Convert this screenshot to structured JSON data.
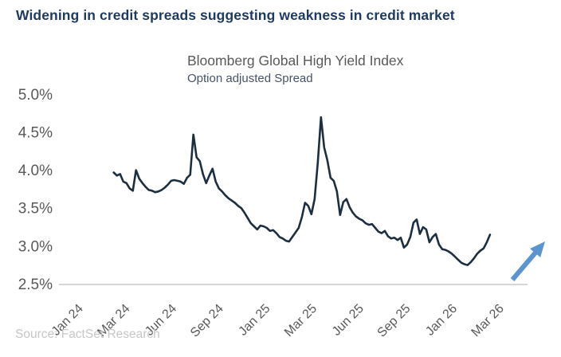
{
  "header": {
    "title": "Widening in credit spreads suggesting weakness in credit market"
  },
  "chart": {
    "title": "Bloomberg Global High Yield Index",
    "subtitle": "Option adjusted Spread",
    "source": "Source: FactSet Research"
  },
  "colors": {
    "header_title": "#1F3A5F",
    "chart_title": "#595959",
    "chart_subtitle": "#44546A",
    "axis_labels": "#595959",
    "axis_line": "#C8C8C8",
    "series_line": "#1C2F40",
    "trend_arrow": "#5B94CE",
    "source_text": "#C6C6C6"
  },
  "chart_data": {
    "type": "line",
    "title": "Bloomberg Global High Yield Index",
    "subtitle": "Option adjusted Spread",
    "unit": "percent",
    "ylim": [
      2.5,
      5.0
    ],
    "ytick_values": [
      5.0,
      4.5,
      4.0,
      3.5,
      3.0,
      2.5
    ],
    "ytick_labels": [
      "5.0%",
      "4.5%",
      "4.0%",
      "3.5%",
      "3.0%",
      "2.5%"
    ],
    "xtick_labels": [
      "Jan 24",
      "Mar 24",
      "Jun 24",
      "Sep 24",
      "Jan 25",
      "Mar 25",
      "Jun 25",
      "Sep 25",
      "Jan 26",
      "Mar 26"
    ],
    "grid": false,
    "legend": false,
    "annotations": [
      {
        "type": "arrow",
        "direction": "up-right",
        "meaning": "spreads widening"
      }
    ],
    "series": [
      {
        "name": "Option adjusted Spread",
        "start_near_tick": "Mar 24",
        "end_near_tick": "Mar 26",
        "values": [
          3.97,
          3.93,
          3.95,
          3.85,
          3.83,
          3.76,
          3.73,
          4.0,
          3.89,
          3.83,
          3.78,
          3.74,
          3.73,
          3.71,
          3.72,
          3.74,
          3.77,
          3.81,
          3.86,
          3.87,
          3.86,
          3.85,
          3.82,
          3.9,
          3.94,
          4.47,
          4.17,
          4.12,
          3.95,
          3.83,
          3.93,
          4.02,
          3.85,
          3.76,
          3.72,
          3.67,
          3.63,
          3.6,
          3.57,
          3.53,
          3.5,
          3.44,
          3.37,
          3.3,
          3.26,
          3.22,
          3.27,
          3.26,
          3.24,
          3.2,
          3.21,
          3.17,
          3.12,
          3.1,
          3.07,
          3.06,
          3.12,
          3.18,
          3.24,
          3.38,
          3.57,
          3.53,
          3.42,
          3.62,
          4.1,
          4.7,
          4.3,
          4.13,
          3.9,
          3.86,
          3.72,
          3.41,
          3.58,
          3.62,
          3.51,
          3.44,
          3.39,
          3.36,
          3.34,
          3.3,
          3.28,
          3.29,
          3.24,
          3.19,
          3.17,
          3.2,
          3.13,
          3.1,
          3.11,
          3.08,
          3.11,
          2.98,
          3.02,
          3.12,
          3.31,
          3.35,
          3.16,
          3.25,
          3.22,
          3.05,
          3.12,
          3.16,
          3.02,
          2.96,
          2.95,
          2.93,
          2.9,
          2.86,
          2.82,
          2.78,
          2.76,
          2.75,
          2.79,
          2.84,
          2.9,
          2.94,
          2.97,
          3.05,
          3.15
        ]
      }
    ]
  }
}
